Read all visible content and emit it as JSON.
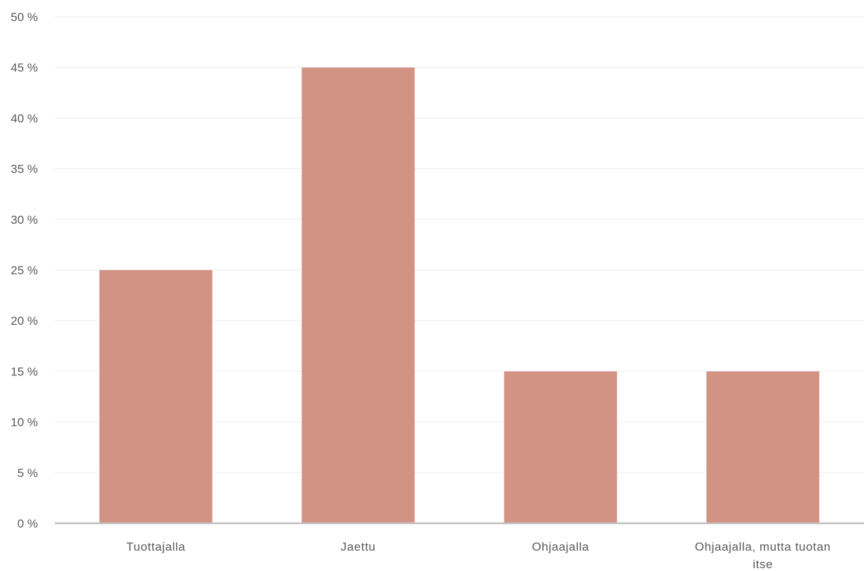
{
  "chart_data": {
    "type": "bar",
    "categories": [
      "Tuottajalla",
      "Jaettu",
      "Ohjaajalla",
      "Ohjaajalla, mutta tuotan itse"
    ],
    "category_label_lines": [
      [
        "Tuottajalla"
      ],
      [
        "Jaettu"
      ],
      [
        "Ohjaajalla"
      ],
      [
        "Ohjaajalla, mutta tuotan",
        "itse"
      ]
    ],
    "values": [
      25,
      45,
      15,
      15
    ],
    "value_unit": "%",
    "ylim": [
      0,
      50
    ],
    "y_ticks": [
      0,
      5,
      10,
      15,
      20,
      25,
      30,
      35,
      40,
      45,
      50
    ],
    "y_tick_labels": [
      "0 %",
      "5 %",
      "10 %",
      "15 %",
      "20 %",
      "25 %",
      "30 %",
      "35 %",
      "40 %",
      "45 %",
      "50 %"
    ],
    "title": "",
    "xlabel": "",
    "ylabel": "",
    "grid": true,
    "legend": "none",
    "colors": {
      "bar": "#d39384",
      "grid": "#eeeeee",
      "axis": "#bfbfbf",
      "text": "#595959"
    }
  }
}
